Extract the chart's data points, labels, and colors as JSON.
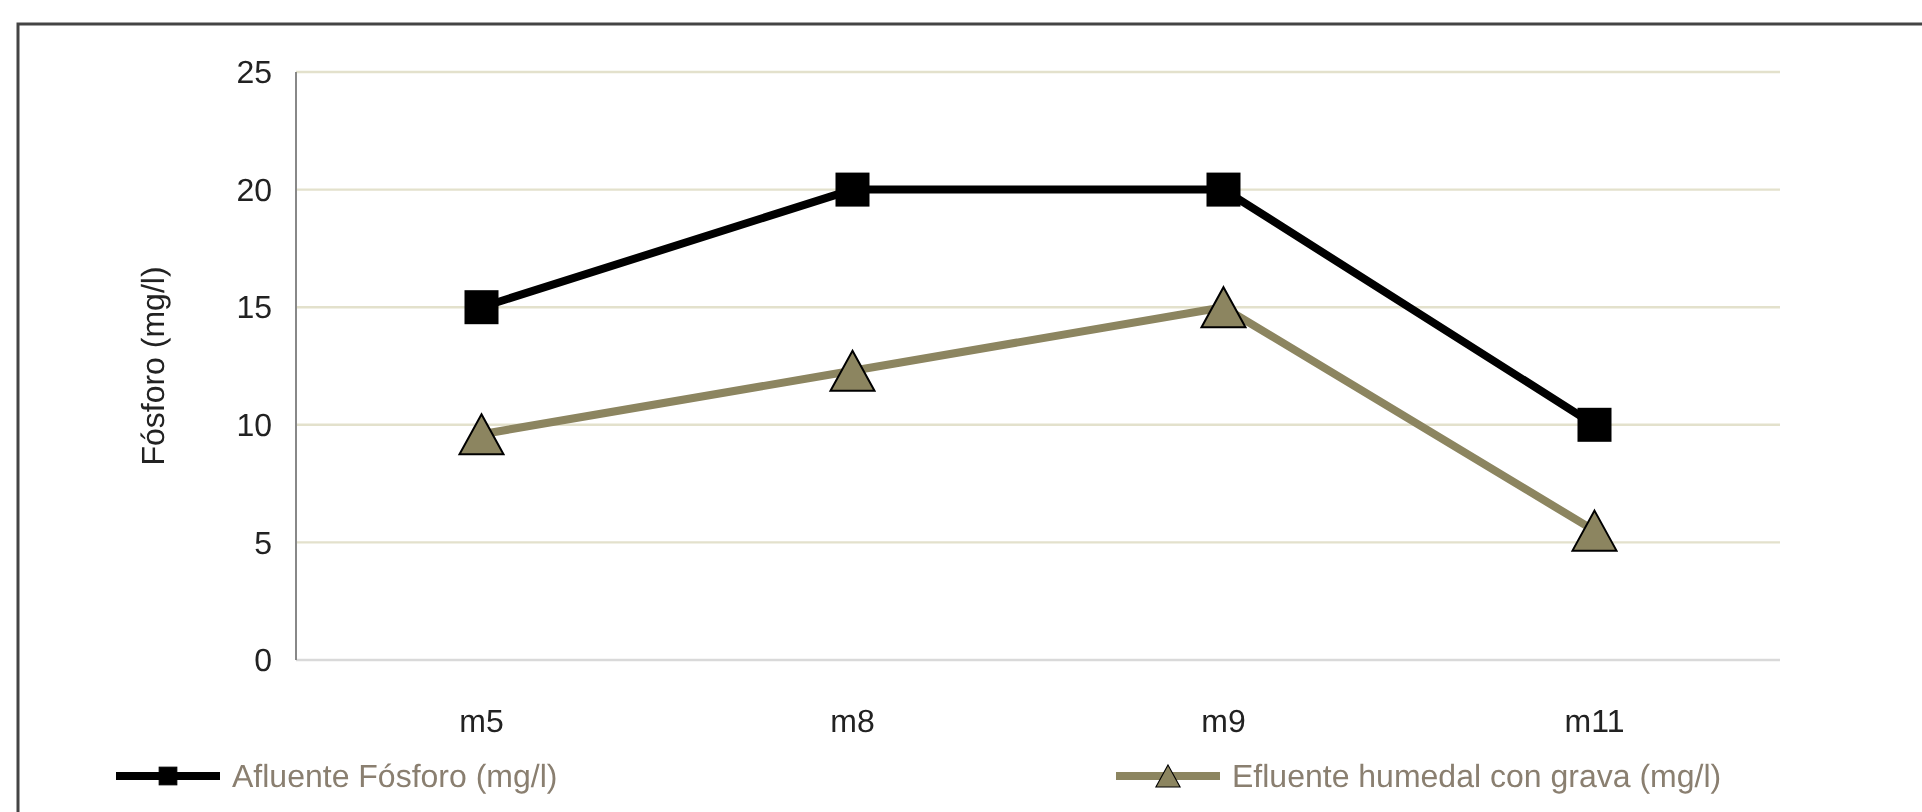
{
  "chart_data": {
    "type": "line",
    "ylabel": "Fósforo (mg/l)",
    "categories": [
      "m5",
      "m8",
      "m9",
      "m11"
    ],
    "series": [
      {
        "name": "Afluente Fósforo (mg/l)",
        "color": "#000000",
        "marker": "square",
        "values": [
          15,
          20,
          20,
          10
        ]
      },
      {
        "name": "Efluente humedal con grava (mg/l)",
        "color": "#8c8560",
        "marker": "triangle",
        "values": [
          9.6,
          12.3,
          15,
          5.5
        ]
      }
    ],
    "ylim": [
      0,
      25
    ],
    "yticks": [
      0,
      5,
      10,
      15,
      20,
      25
    ],
    "grid": "y",
    "legend": "bottom"
  }
}
